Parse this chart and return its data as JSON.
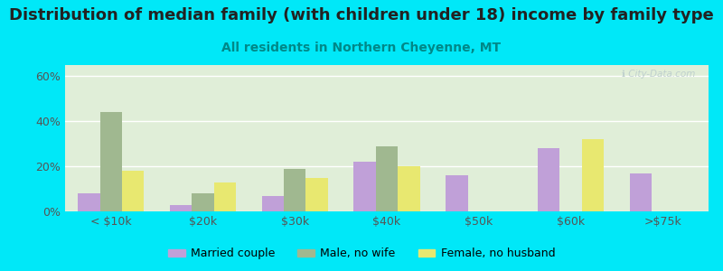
{
  "title": "Distribution of median family (with children under 18) income by family type",
  "subtitle": "All residents in Northern Cheyenne, MT",
  "categories": [
    "< $10k",
    "$20k",
    "$30k",
    "$40k",
    "$50k",
    "$60k",
    ">$75k"
  ],
  "married_couple": [
    8,
    3,
    7,
    22,
    16,
    28,
    17
  ],
  "male_no_wife": [
    44,
    8,
    19,
    29,
    0,
    0,
    0
  ],
  "female_no_husband": [
    18,
    13,
    15,
    20,
    0,
    32,
    0
  ],
  "color_married": "#c0a0d8",
  "color_male": "#a0b890",
  "color_female": "#e8e870",
  "bg_outer": "#00e8f8",
  "bg_plot": "#e0eed8",
  "title_color": "#222222",
  "subtitle_color": "#008888",
  "tick_color": "#555555",
  "grid_color": "#ffffff",
  "watermark_color": "#bbcccc",
  "ylim": [
    0,
    65
  ],
  "yticks": [
    0,
    20,
    40,
    60
  ],
  "yticklabels": [
    "0%",
    "20%",
    "40%",
    "60%"
  ],
  "title_fontsize": 13,
  "subtitle_fontsize": 10,
  "tick_fontsize": 9,
  "legend_fontsize": 9,
  "watermark_text": "ℹ City-Data.com"
}
